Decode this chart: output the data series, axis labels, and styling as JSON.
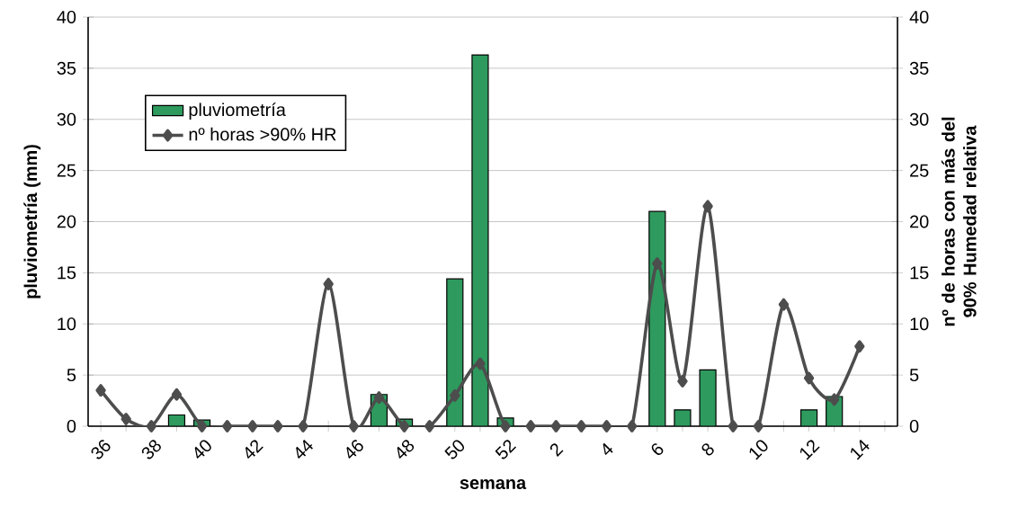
{
  "chart_data": {
    "type": "bar",
    "xlabel": "semana",
    "ylabel": "pluviometría (mm)",
    "y2label": "nº de horas con más del 90% Humedad relativa",
    "categories": [
      "36",
      null,
      "38",
      null,
      "40",
      null,
      "42",
      null,
      "44",
      null,
      "46",
      null,
      "48",
      null,
      "50",
      null,
      "52",
      null,
      "2",
      null,
      "4",
      null,
      "6",
      null,
      "8",
      null,
      "10",
      null,
      "12",
      null,
      "14",
      null
    ],
    "series": [
      {
        "name": "pluviometría",
        "color": "#2e9a5e",
        "values": [
          null,
          null,
          null,
          1.1,
          0.6,
          null,
          null,
          null,
          null,
          null,
          null,
          3.1,
          0.7,
          null,
          14.4,
          36.3,
          0.8,
          null,
          null,
          null,
          null,
          null,
          21.0,
          1.6,
          5.5,
          null,
          null,
          null,
          1.6,
          2.9,
          null,
          null
        ]
      },
      {
        "name": "nº horas >90% HR",
        "type": "line",
        "axis": "y2",
        "color": "#4d4d4d",
        "marker": "diamond",
        "line_style": "solid",
        "values": [
          3.5,
          0.7,
          0,
          3.1,
          0,
          0,
          0,
          0,
          0,
          13.9,
          0,
          2.8,
          0,
          0,
          3.0,
          6.1,
          0,
          0,
          0,
          0,
          0,
          0,
          15.9,
          4.4,
          21.5,
          0,
          0,
          11.9,
          4.7,
          2.6,
          7.8,
          null
        ]
      }
    ],
    "ylim": [
      0,
      40
    ],
    "yticks": [
      0,
      5,
      10,
      15,
      20,
      25,
      30,
      35,
      40
    ],
    "y2lim": [
      0,
      40
    ],
    "y2ticks": [
      0,
      5,
      10,
      15,
      20,
      25,
      30,
      35,
      40
    ],
    "grid": "y",
    "legend": "top left"
  }
}
